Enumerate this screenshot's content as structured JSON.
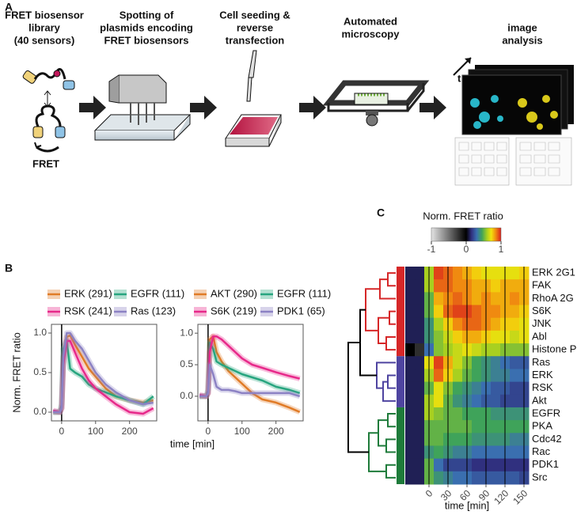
{
  "panel_labels": [
    "A",
    "B",
    "C"
  ],
  "workflow": {
    "steps": [
      [
        "FRET biosensor",
        "library",
        "(40 sensors)"
      ],
      [
        "Spotting of",
        "plasmids encoding",
        "FRET biosensors"
      ],
      [
        "Cell seeding &",
        "reverse",
        "transfection"
      ],
      [
        "Automated",
        "microscopy"
      ],
      [
        "image",
        "analysis"
      ]
    ],
    "fret_label": "FRET",
    "time_label": "t"
  },
  "chart_data": [
    {
      "type": "line",
      "ylabel": "Norm. FRET ratio",
      "xlabel": "time [min]",
      "x": [
        -25,
        -5,
        0,
        5,
        15,
        25,
        40,
        60,
        80,
        100,
        130,
        160,
        200,
        240,
        270
      ],
      "xlim": [
        -30,
        280
      ],
      "ylim": [
        -0.11,
        1.11
      ],
      "xticks": [
        0,
        100,
        200
      ],
      "yticks": [
        {
          "value": 0,
          "label": "0.0"
        },
        {
          "value": 0.5,
          "label": "0.5"
        },
        {
          "value": 1,
          "label": "1.0"
        }
      ],
      "series": [
        {
          "name": "ERK (291)",
          "color": "#e07b27",
          "values": [
            0,
            0,
            0.05,
            0.7,
            0.95,
            0.97,
            0.85,
            0.7,
            0.55,
            0.45,
            0.3,
            0.2,
            0.15,
            0.12,
            0.15
          ]
        },
        {
          "name": "EGFR (111)",
          "color": "#27a57f",
          "values": [
            0,
            0,
            0.1,
            0.8,
            0.9,
            0.55,
            0.5,
            0.45,
            0.35,
            0.3,
            0.25,
            0.2,
            0.15,
            0.1,
            0.2
          ]
        },
        {
          "name": "RSK (241)",
          "color": "#e7298a",
          "values": [
            0.02,
            0,
            0.05,
            0.6,
            0.9,
            0.9,
            0.75,
            0.55,
            0.4,
            0.3,
            0.2,
            0.1,
            0.0,
            -0.02,
            0.05
          ]
        },
        {
          "name": "Ras (123)",
          "color": "#8c82c4",
          "values": [
            0,
            0,
            0.05,
            0.7,
            1.0,
            1.0,
            0.9,
            0.8,
            0.65,
            0.5,
            0.35,
            0.25,
            0.15,
            0.1,
            0.12
          ]
        }
      ]
    },
    {
      "type": "line",
      "x": [
        -25,
        -5,
        0,
        5,
        15,
        25,
        40,
        60,
        80,
        100,
        130,
        160,
        200,
        240,
        270
      ],
      "xlim": [
        -30,
        280
      ],
      "ylim": [
        -0.39,
        1.14
      ],
      "xticks": [
        0,
        100,
        200
      ],
      "yticks": [
        {
          "value": 0,
          "label": "0.0"
        },
        {
          "value": 0.5,
          "label": "0.5"
        },
        {
          "value": 1,
          "label": "1.0"
        }
      ],
      "series": [
        {
          "name": "AKT (290)",
          "color": "#e07b27",
          "values": [
            0,
            0,
            0.05,
            0.9,
            0.95,
            0.7,
            0.55,
            0.4,
            0.3,
            0.2,
            0.05,
            -0.05,
            -0.1,
            -0.18,
            -0.25
          ]
        },
        {
          "name": "EGFR (111)",
          "color": "#27a57f",
          "values": [
            0,
            0,
            0.1,
            0.85,
            0.75,
            0.55,
            0.5,
            0.45,
            0.4,
            0.35,
            0.3,
            0.25,
            0.15,
            0.1,
            0.05
          ]
        },
        {
          "name": "S6K (219)",
          "color": "#e7298a",
          "values": [
            0.02,
            0,
            0.05,
            0.7,
            0.95,
            0.95,
            0.9,
            0.8,
            0.7,
            0.6,
            0.5,
            0.45,
            0.38,
            0.32,
            0.28
          ]
        },
        {
          "name": "PDK1 (65)",
          "color": "#8c82c4",
          "values": [
            0,
            0,
            0.05,
            0.5,
            0.35,
            0.15,
            0.1,
            0.1,
            0.08,
            0.05,
            0.05,
            0.05,
            0.05,
            0.05,
            0.0
          ]
        }
      ]
    },
    {
      "type": "heatmap",
      "title": "Norm. FRET ratio",
      "xlabel": "time [min]",
      "x": [
        -30,
        -15,
        0,
        15,
        30,
        45,
        60,
        75,
        90,
        105,
        120,
        135,
        150
      ],
      "xlim": [
        -37.5,
        157.5
      ],
      "xticks": [
        0,
        30,
        60,
        90,
        120,
        150
      ],
      "zlim": [
        -1,
        1
      ],
      "colorbar_ticks": [
        -1,
        0,
        1
      ],
      "colorscale": [
        [
          -1,
          "#e4e4e4"
        ],
        [
          0,
          "#000000"
        ],
        [
          0.15,
          "#30307f"
        ],
        [
          0.3,
          "#3a6fb0"
        ],
        [
          0.45,
          "#3fa35a"
        ],
        [
          0.6,
          "#a8d020"
        ],
        [
          0.72,
          "#f2e20c"
        ],
        [
          0.85,
          "#f08a10"
        ],
        [
          1,
          "#d81e1e"
        ]
      ],
      "rows": [
        "ERK 2G1",
        "FAK",
        "RhoA 2G",
        "S6K",
        "JNK",
        "Abl",
        "Histone P",
        "Ras",
        "ERK",
        "RSK",
        "Akt",
        "EGFR",
        "PKA",
        "Cdc42",
        "Rac",
        "PDK1",
        "Src"
      ],
      "values": [
        [
          0.1,
          0.1,
          0.6,
          0.95,
          0.9,
          0.85,
          0.8,
          0.75,
          0.7,
          0.7,
          0.7,
          0.7,
          0.75
        ],
        [
          0.1,
          0.1,
          0.6,
          0.9,
          0.9,
          0.85,
          0.85,
          0.8,
          0.8,
          0.75,
          0.8,
          0.8,
          0.8
        ],
        [
          0.1,
          0.1,
          0.5,
          0.8,
          0.85,
          0.9,
          0.85,
          0.8,
          0.85,
          0.8,
          0.8,
          0.85,
          0.8
        ],
        [
          0.1,
          0.1,
          0.5,
          0.75,
          0.9,
          0.95,
          0.95,
          0.9,
          0.85,
          0.85,
          0.8,
          0.8,
          0.75
        ],
        [
          0.1,
          0.1,
          0.4,
          0.6,
          0.75,
          0.85,
          0.9,
          0.9,
          0.85,
          0.8,
          0.75,
          0.75,
          0.7
        ],
        [
          0.1,
          0.1,
          0.4,
          0.55,
          0.65,
          0.75,
          0.8,
          0.8,
          0.75,
          0.7,
          0.7,
          0.65,
          0.7
        ],
        [
          0,
          -0.2,
          0.3,
          0.55,
          0.6,
          0.65,
          0.7,
          0.65,
          0.6,
          0.6,
          0.55,
          0.55,
          0.55
        ],
        [
          0.1,
          0.1,
          0.7,
          0.95,
          0.8,
          0.65,
          0.55,
          0.45,
          0.4,
          0.35,
          0.3,
          0.25,
          0.25
        ],
        [
          0.1,
          0.1,
          0.6,
          0.9,
          0.75,
          0.6,
          0.5,
          0.45,
          0.4,
          0.35,
          0.35,
          0.3,
          0.3
        ],
        [
          0.1,
          0.1,
          0.5,
          0.7,
          0.55,
          0.45,
          0.4,
          0.35,
          0.3,
          0.25,
          0.25,
          0.2,
          0.2
        ],
        [
          0.1,
          0.1,
          0.6,
          0.7,
          0.5,
          0.4,
          0.35,
          0.3,
          0.25,
          0.25,
          0.2,
          0.2,
          0.2
        ],
        [
          0.1,
          0.1,
          0.6,
          0.55,
          0.5,
          0.5,
          0.45,
          0.45,
          0.45,
          0.4,
          0.4,
          0.4,
          0.4
        ],
        [
          0.1,
          0.1,
          0.5,
          0.5,
          0.5,
          0.5,
          0.5,
          0.45,
          0.45,
          0.45,
          0.45,
          0.45,
          0.45
        ],
        [
          0.1,
          0.1,
          0.5,
          0.5,
          0.45,
          0.45,
          0.45,
          0.4,
          0.4,
          0.4,
          0.4,
          0.35,
          0.35
        ],
        [
          0.1,
          0.1,
          0.4,
          0.45,
          0.4,
          0.35,
          0.35,
          0.3,
          0.3,
          0.3,
          0.3,
          0.3,
          0.3
        ],
        [
          0.1,
          0.1,
          0.5,
          0.3,
          0.2,
          0.2,
          0.2,
          0.15,
          0.15,
          0.15,
          0.15,
          0.15,
          0.15
        ],
        [
          0.1,
          0.1,
          0.5,
          0.4,
          0.35,
          0.3,
          0.3,
          0.25,
          0.25,
          0.25,
          0.25,
          0.25,
          0.2
        ]
      ]
    }
  ]
}
